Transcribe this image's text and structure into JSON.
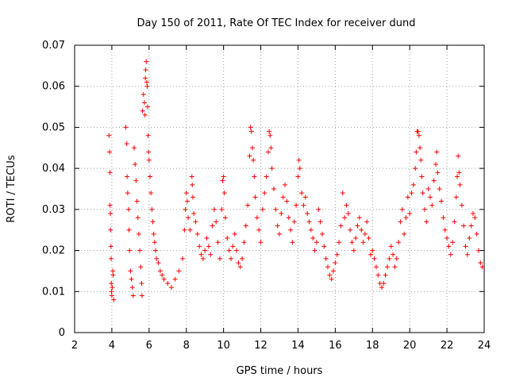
{
  "chart_data": {
    "type": "scatter",
    "title": "Day 150 of 2011, Rate Of TEC Index for receiver dund",
    "xlabel": "GPS time / hours",
    "ylabel": "ROTI / TECUs",
    "xlim": [
      2,
      24
    ],
    "ylim": [
      0,
      0.07
    ],
    "xticks": [
      2,
      4,
      6,
      8,
      10,
      12,
      14,
      16,
      18,
      20,
      22,
      24
    ],
    "yticks": [
      0,
      0.01,
      0.02,
      0.03,
      0.04,
      0.05,
      0.06,
      0.07
    ],
    "xtick_labels": [
      "2",
      "4",
      "6",
      "8",
      "10",
      "12",
      "14",
      "16",
      "18",
      "20",
      "22",
      "24"
    ],
    "ytick_labels": [
      "0",
      "0.01",
      "0.02",
      "0.03",
      "0.04",
      "0.05",
      "0.06",
      "0.07"
    ],
    "grid": true,
    "marker": "plus",
    "color": "#ff0000",
    "series": [
      {
        "points": [
          [
            3.85,
            0.048
          ],
          [
            3.88,
            0.044
          ],
          [
            3.9,
            0.039
          ],
          [
            3.9,
            0.031
          ],
          [
            3.92,
            0.029
          ],
          [
            3.93,
            0.025
          ],
          [
            3.95,
            0.021
          ],
          [
            3.96,
            0.018
          ],
          [
            3.97,
            0.012
          ],
          [
            3.98,
            0.01
          ],
          [
            4.0,
            0.009
          ],
          [
            4.02,
            0.011
          ],
          [
            4.05,
            0.015
          ],
          [
            4.07,
            0.014
          ],
          [
            4.1,
            0.008
          ],
          [
            4.75,
            0.05
          ],
          [
            4.8,
            0.046
          ],
          [
            4.82,
            0.038
          ],
          [
            4.85,
            0.034
          ],
          [
            4.9,
            0.03
          ],
          [
            4.92,
            0.025
          ],
          [
            4.95,
            0.02
          ],
          [
            5.0,
            0.015
          ],
          [
            5.05,
            0.013
          ],
          [
            5.1,
            0.011
          ],
          [
            5.15,
            0.009
          ],
          [
            5.2,
            0.045
          ],
          [
            5.25,
            0.041
          ],
          [
            5.3,
            0.037
          ],
          [
            5.35,
            0.032
          ],
          [
            5.4,
            0.028
          ],
          [
            5.45,
            0.024
          ],
          [
            5.5,
            0.02
          ],
          [
            5.55,
            0.016
          ],
          [
            5.6,
            0.012
          ],
          [
            5.62,
            0.009
          ],
          [
            5.65,
            0.054
          ],
          [
            5.7,
            0.058
          ],
          [
            5.75,
            0.056
          ],
          [
            5.78,
            0.053
          ],
          [
            5.8,
            0.062
          ],
          [
            5.82,
            0.064
          ],
          [
            5.85,
            0.066
          ],
          [
            5.88,
            0.061
          ],
          [
            5.9,
            0.06
          ],
          [
            5.92,
            0.055
          ],
          [
            5.95,
            0.048
          ],
          [
            5.97,
            0.044
          ],
          [
            6.0,
            0.042
          ],
          [
            6.05,
            0.038
          ],
          [
            6.1,
            0.034
          ],
          [
            6.15,
            0.03
          ],
          [
            6.2,
            0.027
          ],
          [
            6.25,
            0.024
          ],
          [
            6.3,
            0.022
          ],
          [
            6.35,
            0.02
          ],
          [
            6.4,
            0.018
          ],
          [
            6.5,
            0.017
          ],
          [
            6.6,
            0.015
          ],
          [
            6.7,
            0.014
          ],
          [
            6.8,
            0.013
          ],
          [
            7.0,
            0.012
          ],
          [
            7.2,
            0.011
          ],
          [
            7.4,
            0.013
          ],
          [
            7.6,
            0.015
          ],
          [
            7.8,
            0.018
          ],
          [
            7.9,
            0.025
          ],
          [
            7.95,
            0.03
          ],
          [
            8.0,
            0.034
          ],
          [
            8.05,
            0.032
          ],
          [
            8.1,
            0.028
          ],
          [
            8.2,
            0.025
          ],
          [
            8.3,
            0.038
          ],
          [
            8.32,
            0.036
          ],
          [
            8.35,
            0.033
          ],
          [
            8.4,
            0.029
          ],
          [
            8.5,
            0.027
          ],
          [
            8.6,
            0.024
          ],
          [
            8.7,
            0.021
          ],
          [
            8.8,
            0.019
          ],
          [
            8.9,
            0.018
          ],
          [
            9.0,
            0.02
          ],
          [
            9.1,
            0.023
          ],
          [
            9.2,
            0.021
          ],
          [
            9.3,
            0.019
          ],
          [
            9.4,
            0.026
          ],
          [
            9.5,
            0.03
          ],
          [
            9.6,
            0.027
          ],
          [
            9.7,
            0.022
          ],
          [
            9.8,
            0.018
          ],
          [
            9.9,
            0.03
          ],
          [
            9.95,
            0.037
          ],
          [
            10.0,
            0.038
          ],
          [
            10.05,
            0.034
          ],
          [
            10.1,
            0.028
          ],
          [
            10.2,
            0.023
          ],
          [
            10.3,
            0.02
          ],
          [
            10.4,
            0.018
          ],
          [
            10.5,
            0.021
          ],
          [
            10.6,
            0.024
          ],
          [
            10.7,
            0.02
          ],
          [
            10.8,
            0.017
          ],
          [
            10.9,
            0.016
          ],
          [
            11.0,
            0.018
          ],
          [
            11.1,
            0.022
          ],
          [
            11.2,
            0.026
          ],
          [
            11.3,
            0.031
          ],
          [
            11.4,
            0.043
          ],
          [
            11.45,
            0.05
          ],
          [
            11.5,
            0.049
          ],
          [
            11.55,
            0.045
          ],
          [
            11.6,
            0.042
          ],
          [
            11.65,
            0.038
          ],
          [
            11.7,
            0.033
          ],
          [
            11.8,
            0.028
          ],
          [
            11.9,
            0.025
          ],
          [
            12.0,
            0.022
          ],
          [
            12.1,
            0.03
          ],
          [
            12.2,
            0.034
          ],
          [
            12.3,
            0.038
          ],
          [
            12.4,
            0.044
          ],
          [
            12.45,
            0.049
          ],
          [
            12.5,
            0.048
          ],
          [
            12.55,
            0.045
          ],
          [
            12.6,
            0.04
          ],
          [
            12.7,
            0.035
          ],
          [
            12.8,
            0.03
          ],
          [
            12.9,
            0.026
          ],
          [
            13.0,
            0.024
          ],
          [
            13.1,
            0.029
          ],
          [
            13.2,
            0.033
          ],
          [
            13.3,
            0.036
          ],
          [
            13.4,
            0.032
          ],
          [
            13.5,
            0.028
          ],
          [
            13.6,
            0.025
          ],
          [
            13.7,
            0.022
          ],
          [
            13.8,
            0.027
          ],
          [
            13.9,
            0.031
          ],
          [
            14.0,
            0.038
          ],
          [
            14.05,
            0.042
          ],
          [
            14.1,
            0.04
          ],
          [
            14.2,
            0.034
          ],
          [
            14.3,
            0.031
          ],
          [
            14.4,
            0.033
          ],
          [
            14.5,
            0.029
          ],
          [
            14.6,
            0.027
          ],
          [
            14.7,
            0.025
          ],
          [
            14.8,
            0.023
          ],
          [
            14.9,
            0.02
          ],
          [
            15.0,
            0.022
          ],
          [
            15.1,
            0.03
          ],
          [
            15.2,
            0.027
          ],
          [
            15.3,
            0.024
          ],
          [
            15.4,
            0.021
          ],
          [
            15.5,
            0.018
          ],
          [
            15.6,
            0.016
          ],
          [
            15.7,
            0.014
          ],
          [
            15.8,
            0.013
          ],
          [
            15.9,
            0.015
          ],
          [
            16.0,
            0.017
          ],
          [
            16.1,
            0.019
          ],
          [
            16.2,
            0.022
          ],
          [
            16.3,
            0.026
          ],
          [
            16.4,
            0.034
          ],
          [
            16.5,
            0.028
          ],
          [
            16.6,
            0.031
          ],
          [
            16.7,
            0.029
          ],
          [
            16.8,
            0.025
          ],
          [
            16.9,
            0.022
          ],
          [
            17.0,
            0.02
          ],
          [
            17.1,
            0.023
          ],
          [
            17.2,
            0.026
          ],
          [
            17.3,
            0.028
          ],
          [
            17.4,
            0.025
          ],
          [
            17.5,
            0.022
          ],
          [
            17.6,
            0.024
          ],
          [
            17.7,
            0.027
          ],
          [
            17.8,
            0.023
          ],
          [
            17.9,
            0.019
          ],
          [
            18.0,
            0.02
          ],
          [
            18.1,
            0.018
          ],
          [
            18.2,
            0.016
          ],
          [
            18.3,
            0.014
          ],
          [
            18.4,
            0.012
          ],
          [
            18.5,
            0.011
          ],
          [
            18.6,
            0.012
          ],
          [
            18.7,
            0.014
          ],
          [
            18.8,
            0.016
          ],
          [
            18.9,
            0.018
          ],
          [
            19.0,
            0.021
          ],
          [
            19.1,
            0.019
          ],
          [
            19.2,
            0.016
          ],
          [
            19.3,
            0.018
          ],
          [
            19.4,
            0.022
          ],
          [
            19.5,
            0.027
          ],
          [
            19.6,
            0.03
          ],
          [
            19.7,
            0.024
          ],
          [
            19.8,
            0.028
          ],
          [
            19.9,
            0.033
          ],
          [
            20.0,
            0.029
          ],
          [
            20.1,
            0.034
          ],
          [
            20.2,
            0.036
          ],
          [
            20.3,
            0.04
          ],
          [
            20.35,
            0.044
          ],
          [
            20.4,
            0.049
          ],
          [
            20.45,
            0.049
          ],
          [
            20.5,
            0.048
          ],
          [
            20.55,
            0.045
          ],
          [
            20.6,
            0.042
          ],
          [
            20.65,
            0.038
          ],
          [
            20.7,
            0.034
          ],
          [
            20.8,
            0.03
          ],
          [
            20.9,
            0.027
          ],
          [
            21.0,
            0.035
          ],
          [
            21.1,
            0.033
          ],
          [
            21.2,
            0.031
          ],
          [
            21.3,
            0.037
          ],
          [
            21.4,
            0.041
          ],
          [
            21.45,
            0.044
          ],
          [
            21.5,
            0.039
          ],
          [
            21.6,
            0.035
          ],
          [
            21.7,
            0.032
          ],
          [
            21.8,
            0.028
          ],
          [
            21.9,
            0.025
          ],
          [
            22.0,
            0.023
          ],
          [
            22.1,
            0.021
          ],
          [
            22.2,
            0.019
          ],
          [
            22.3,
            0.022
          ],
          [
            22.4,
            0.027
          ],
          [
            22.5,
            0.033
          ],
          [
            22.55,
            0.038
          ],
          [
            22.6,
            0.043
          ],
          [
            22.65,
            0.039
          ],
          [
            22.7,
            0.036
          ],
          [
            22.8,
            0.031
          ],
          [
            22.9,
            0.026
          ],
          [
            23.0,
            0.021
          ],
          [
            23.1,
            0.019
          ],
          [
            23.2,
            0.023
          ],
          [
            23.3,
            0.026
          ],
          [
            23.4,
            0.029
          ],
          [
            23.5,
            0.028
          ],
          [
            23.6,
            0.024
          ],
          [
            23.7,
            0.02
          ],
          [
            23.8,
            0.017
          ],
          [
            23.9,
            0.016
          ]
        ]
      }
    ]
  }
}
